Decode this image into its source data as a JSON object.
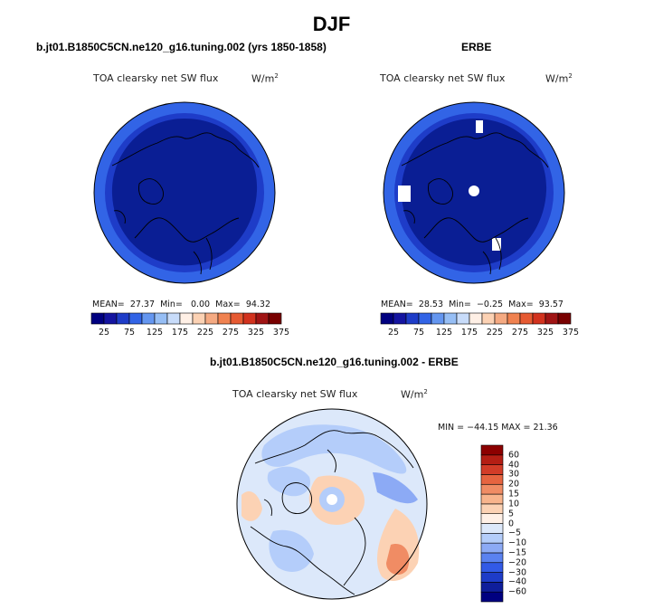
{
  "title": "DJF",
  "panels": [
    {
      "heading": "b.jt01.B1850C5CN.ne120_g16.tuning.002 (yrs 1850-1858)",
      "variable": "TOA clearsky net SW flux",
      "unit": "W/m",
      "unit_exp": "2",
      "mean_label": "MEAN=",
      "mean": "27.37",
      "min_label": "Min=",
      "min": "0.00",
      "max_label": "Max=",
      "max": "94.32"
    },
    {
      "heading": "ERBE",
      "variable": "TOA clearsky net SW flux",
      "unit": "W/m",
      "unit_exp": "2",
      "mean_label": "MEAN=",
      "mean": "28.53",
      "min_label": "Min=",
      "min": "−0.25",
      "max_label": "Max=",
      "max": "93.57"
    }
  ],
  "diff_panel": {
    "heading": "b.jt01.B1850C5CN.ne120_g16.tuning.002 - ERBE",
    "variable": "TOA clearsky net SW flux",
    "unit": "W/m",
    "unit_exp": "2",
    "minmax": "MIN = −44.15 MAX =  21.36"
  },
  "colorbar_top": {
    "colors": [
      "#000080",
      "#1414a0",
      "#1e3cc8",
      "#3264e6",
      "#6496f0",
      "#96bef5",
      "#c8dcfa",
      "#fff0e6",
      "#fcd2b4",
      "#f5aa82",
      "#f08250",
      "#e65a32",
      "#d2321e",
      "#a01414",
      "#780000"
    ],
    "tick_labels": [
      "25",
      "75",
      "125",
      "175",
      "225",
      "275",
      "325",
      "375"
    ]
  },
  "colorbar_diff": {
    "colors": [
      "#000080",
      "#0f1e9b",
      "#1e3cc8",
      "#325ae6",
      "#5a82f0",
      "#8caaf5",
      "#b4cdfa",
      "#dce8fa",
      "#fff0e6",
      "#fcd2b4",
      "#f8b48c",
      "#f08c64",
      "#e66440",
      "#d23c28",
      "#b41e14",
      "#8c0000"
    ],
    "tick_labels": [
      "60",
      "40",
      "30",
      "20",
      "15",
      "10",
      "5",
      "0",
      "−5",
      "−10",
      "−15",
      "−20",
      "−30",
      "−40",
      "−60"
    ]
  },
  "map_colors": {
    "dark_field": "#0a1e94",
    "mid_ring": "#1e3cc8",
    "outer_ring": "#3264e6",
    "diff_base": "#dce8fa",
    "diff_light": "#b4cdfa",
    "diff_mid": "#8caaf5",
    "diff_warm": "#fcd2b4",
    "diff_hot": "#f08c64"
  }
}
